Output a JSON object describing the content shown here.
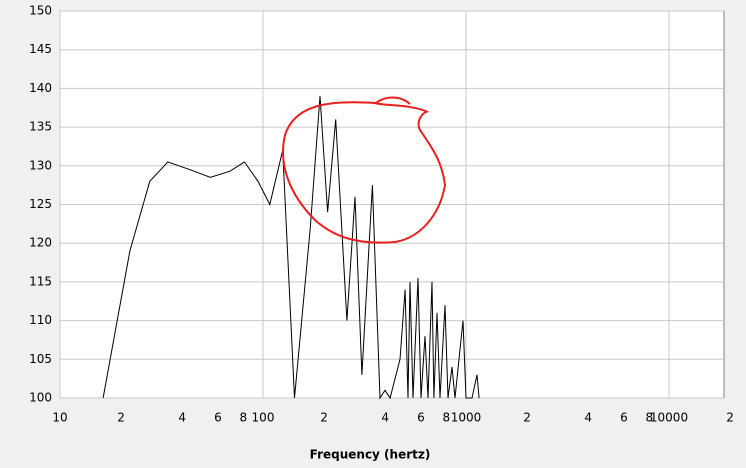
{
  "chart_data": {
    "type": "line",
    "xlabel": "Frequency (hertz)",
    "xscale": "log",
    "grid": true,
    "color": "#000000",
    "x": [
      16.3,
      22.1,
      27.7,
      34,
      43.7,
      55,
      68.8,
      81,
      94.5,
      108,
      125,
      143,
      171,
      191,
      208,
      228,
      259,
      284,
      307,
      346,
      377,
      399,
      423,
      473,
      501,
      518,
      530,
      548,
      580,
      600,
      628,
      650,
      680,
      695,
      720,
      745,
      788,
      815,
      853,
      883,
      966,
      1000,
      1071,
      1133,
      1160
    ],
    "values": [
      100,
      119,
      128,
      130.5,
      129.5,
      128.5,
      129.3,
      130.5,
      128,
      125,
      132,
      100,
      122,
      139,
      124,
      136,
      110,
      126,
      103,
      127.5,
      100,
      101,
      100,
      105,
      114,
      100,
      115,
      100,
      115.5,
      100,
      108,
      100,
      115,
      100,
      111,
      100,
      112,
      100,
      104,
      100,
      110,
      100,
      100,
      103,
      100
    ],
    "xlim": [
      10,
      20000
    ],
    "ylim": [
      100,
      150
    ],
    "xticks": [
      10,
      {
        "value": 20,
        "label": "2"
      },
      {
        "value": 40,
        "label": "4"
      },
      {
        "value": 60,
        "label": "6"
      },
      {
        "value": 80,
        "label": "8"
      },
      100,
      {
        "value": 200,
        "label": "2"
      },
      {
        "value": 400,
        "label": "4"
      },
      {
        "value": 600,
        "label": "6"
      },
      {
        "value": 800,
        "label": "8"
      },
      1000,
      {
        "value": 2000,
        "label": "2"
      },
      {
        "value": 4000,
        "label": "4"
      },
      {
        "value": 6000,
        "label": "6"
      },
      {
        "value": 8000,
        "label": "8"
      },
      10000,
      {
        "value": 20000,
        "label": "2"
      }
    ],
    "yticks": [
      100,
      105,
      110,
      115,
      120,
      125,
      130,
      135,
      140,
      145,
      150
    ]
  }
}
